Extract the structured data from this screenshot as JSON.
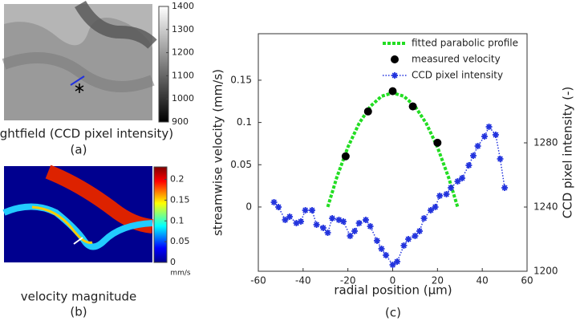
{
  "panel_a": {
    "caption": "brightfield (CCD pixel intensity)",
    "label": "(a)",
    "colorbar_lim": [
      900,
      1400
    ],
    "colorbar_ticks": [
      900,
      1000,
      1100,
      1200,
      1300,
      1400
    ]
  },
  "panel_b": {
    "caption": "velocity magnitude",
    "label": "(b)",
    "colorbar_unit": "mm/s",
    "colorbar_lim": [
      0,
      0.23
    ],
    "colorbar_ticks": [
      0,
      0.05,
      0.1,
      0.15,
      0.2
    ]
  },
  "chart_data": {
    "type": "line",
    "label": "(c)",
    "x_label": "radial position (µm)",
    "y_label": "streamwise velocity (mm/s)",
    "y2_label": "CCD pixel intensity (-)",
    "xlim": [
      -60,
      60
    ],
    "xticks": [
      -60,
      -40,
      -20,
      0,
      20,
      40,
      60
    ],
    "ylim": [
      -0.076,
      0.205
    ],
    "yticks": [
      0,
      0.05,
      0.1,
      0.15
    ],
    "y2lim": [
      1200,
      1348
    ],
    "y2ticks": [
      1200,
      1240,
      1280
    ],
    "legend": "top-right",
    "series": [
      {
        "name": "fitted parabolic profile",
        "color": "#22dd22",
        "style": "dashed-line",
        "x": [
          -29,
          -25,
          -20,
          -15,
          -10,
          -5,
          0,
          5,
          10,
          15,
          20,
          25,
          29
        ],
        "values": [
          0,
          0.0347,
          0.0708,
          0.0989,
          0.119,
          0.131,
          0.135,
          0.131,
          0.119,
          0.0989,
          0.0708,
          0.0347,
          0
        ]
      },
      {
        "name": "measured velocity",
        "color": "#000000",
        "style": "markers",
        "x": [
          -21,
          -11,
          0,
          9,
          20
        ],
        "values": [
          0.06,
          0.113,
          0.137,
          0.119,
          0.076
        ]
      },
      {
        "name": "CCD pixel intensity",
        "color": "#2233dd",
        "style": "dotted-line-stars",
        "axis": "y2",
        "x": [
          -53,
          -51,
          -48,
          -46,
          -43,
          -41,
          -39,
          -36,
          -34,
          -31,
          -29,
          -27,
          -24,
          -22,
          -19,
          -17,
          -15,
          -12,
          -10,
          -7,
          -5,
          -3,
          0,
          2,
          5,
          7,
          10,
          12,
          14,
          17,
          19,
          21,
          24,
          26,
          29,
          31,
          34,
          36,
          38,
          41,
          43,
          46,
          48,
          50
        ],
        "values": [
          1243,
          1240,
          1232,
          1234,
          1230,
          1231,
          1238,
          1238,
          1229,
          1227,
          1224,
          1233,
          1232,
          1231,
          1222,
          1225,
          1230,
          1232,
          1228,
          1219,
          1214,
          1210,
          1204,
          1206,
          1216,
          1220,
          1222,
          1225,
          1233,
          1238,
          1240,
          1247,
          1248,
          1252,
          1256,
          1258,
          1266,
          1272,
          1278,
          1284,
          1290,
          1285,
          1270,
          1252
        ]
      }
    ]
  }
}
